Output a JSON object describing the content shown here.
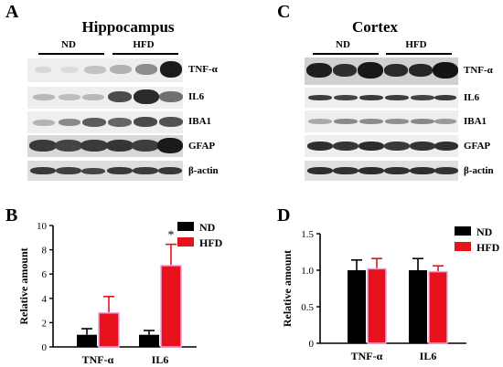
{
  "panels": {
    "a": {
      "letter": "A",
      "title": "Hippocampus",
      "group_labels": [
        "ND",
        "HFD"
      ],
      "rows": [
        {
          "label": "TNF-α"
        },
        {
          "label": "IL6"
        },
        {
          "label": "IBA1"
        },
        {
          "label": "GFAP"
        },
        {
          "label": "β-actin"
        }
      ]
    },
    "b": {
      "letter": "B"
    },
    "c": {
      "letter": "C",
      "title": "Cortex",
      "group_labels": [
        "ND",
        "HFD"
      ],
      "rows": [
        {
          "label": "TNF-α"
        },
        {
          "label": "IL6"
        },
        {
          "label": "IBA1"
        },
        {
          "label": "GFAP"
        },
        {
          "label": "β-actin"
        }
      ]
    },
    "d": {
      "letter": "D"
    }
  },
  "chart_data": [
    {
      "type": "bar",
      "categories": [
        "TNF-α",
        "IL6"
      ],
      "series": [
        {
          "name": "ND",
          "color": "#000000",
          "values": [
            1.0,
            1.0
          ],
          "errors": [
            0.5,
            0.35
          ]
        },
        {
          "name": "HFD",
          "color": "#e8121c",
          "values": [
            2.8,
            6.7
          ],
          "errors": [
            1.35,
            1.75
          ]
        }
      ],
      "xlabel": "",
      "ylabel": "Relative amount",
      "ylim": [
        0,
        10
      ],
      "yticks": [
        "0",
        "2",
        "4",
        "6",
        "8",
        "10"
      ],
      "annotations": [
        {
          "text": "*",
          "category": "IL6",
          "series": "HFD"
        }
      ],
      "legend": "top-right",
      "grid": false
    },
    {
      "type": "bar",
      "categories": [
        "TNF-α",
        "IL6"
      ],
      "series": [
        {
          "name": "ND",
          "color": "#000000",
          "values": [
            1.0,
            1.0
          ],
          "errors": [
            0.14,
            0.16
          ]
        },
        {
          "name": "HFD",
          "color": "#e8121c",
          "values": [
            1.02,
            0.98
          ],
          "errors": [
            0.14,
            0.08
          ]
        }
      ],
      "xlabel": "",
      "ylabel": "Relative amount",
      "ylim": [
        0,
        1.5
      ],
      "yticks": [
        "0",
        "0.5",
        "1.0",
        "1.5"
      ],
      "annotations": [],
      "legend": "top-right",
      "grid": false
    }
  ]
}
